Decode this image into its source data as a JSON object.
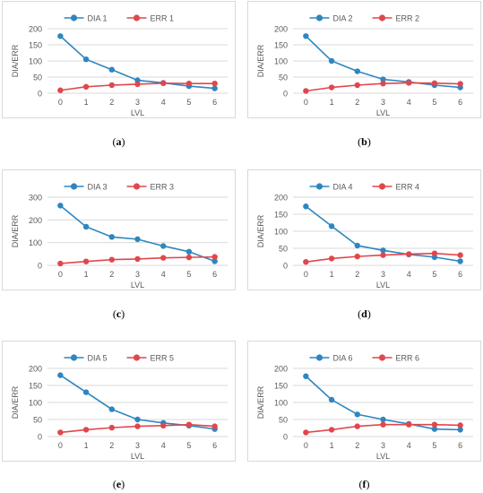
{
  "colors": {
    "dia": "#2E86C1",
    "err": "#E0474C",
    "grid": "#d9d9d9",
    "text": "#595959"
  },
  "chart_data": [
    {
      "type": "line",
      "panel": "(a)",
      "categories": [
        "0",
        "1",
        "2",
        "3",
        "4",
        "5",
        "6"
      ],
      "xlabel": "LVL",
      "ylabel": "DIA/ERR",
      "ylim": [
        0,
        200
      ],
      "yticks": [
        0,
        50,
        100,
        150,
        200
      ],
      "legend": "top-center",
      "grid": true,
      "series": [
        {
          "name": "DIA 1",
          "values": [
            177,
            105,
            73,
            40,
            32,
            22,
            15
          ]
        },
        {
          "name": "ERR 1",
          "values": [
            9,
            20,
            25,
            28,
            31,
            30,
            30
          ]
        }
      ]
    },
    {
      "type": "line",
      "panel": "(b)",
      "categories": [
        "0",
        "1",
        "2",
        "3",
        "4",
        "5",
        "6"
      ],
      "xlabel": "LVL",
      "ylabel": "DIA/ERR",
      "ylim": [
        0,
        200
      ],
      "yticks": [
        0,
        50,
        100,
        150,
        200
      ],
      "legend": "top-center",
      "grid": true,
      "series": [
        {
          "name": "DIA 2",
          "values": [
            177,
            100,
            68,
            43,
            35,
            25,
            18
          ]
        },
        {
          "name": "ERR 2",
          "values": [
            7,
            18,
            25,
            30,
            32,
            31,
            29
          ]
        }
      ]
    },
    {
      "type": "line",
      "panel": "(c)",
      "categories": [
        "0",
        "1",
        "2",
        "3",
        "4",
        "5",
        "6"
      ],
      "xlabel": "LVL",
      "ylabel": "DIA/ERR",
      "ylim": [
        0,
        300
      ],
      "yticks": [
        0,
        100,
        200,
        300
      ],
      "legend": "top-center",
      "grid": true,
      "series": [
        {
          "name": "DIA 3",
          "values": [
            263,
            170,
            125,
            115,
            85,
            60,
            18
          ]
        },
        {
          "name": "ERR 3",
          "values": [
            8,
            17,
            25,
            28,
            33,
            35,
            37
          ]
        }
      ]
    },
    {
      "type": "line",
      "panel": "(d)",
      "categories": [
        "0",
        "1",
        "2",
        "3",
        "4",
        "5",
        "6"
      ],
      "xlabel": "LVL",
      "ylabel": "DIA/ERR",
      "ylim": [
        0,
        200
      ],
      "yticks": [
        0,
        50,
        100,
        150,
        200
      ],
      "legend": "top-center",
      "grid": true,
      "series": [
        {
          "name": "DIA 4",
          "values": [
            173,
            115,
            58,
            44,
            32,
            24,
            12
          ]
        },
        {
          "name": "ERR 4",
          "values": [
            10,
            20,
            26,
            30,
            33,
            35,
            30
          ]
        }
      ]
    },
    {
      "type": "line",
      "panel": "(e)",
      "categories": [
        "0",
        "1",
        "2",
        "3",
        "4",
        "5",
        "6"
      ],
      "xlabel": "LVL",
      "ylabel": "DIA/ERR",
      "ylim": [
        0,
        200
      ],
      "yticks": [
        0,
        50,
        100,
        150,
        200
      ],
      "legend": "top-center",
      "grid": true,
      "series": [
        {
          "name": "DIA 5",
          "values": [
            180,
            130,
            80,
            50,
            40,
            32,
            22
          ]
        },
        {
          "name": "ERR 5",
          "values": [
            12,
            20,
            26,
            30,
            32,
            35,
            30
          ]
        }
      ]
    },
    {
      "type": "line",
      "panel": "(f)",
      "categories": [
        "0",
        "1",
        "2",
        "3",
        "4",
        "5",
        "6"
      ],
      "xlabel": "LVL",
      "ylabel": "DIA/ERR",
      "ylim": [
        0,
        200
      ],
      "yticks": [
        0,
        50,
        100,
        150,
        200
      ],
      "legend": "top-center",
      "grid": true,
      "series": [
        {
          "name": "DIA 6",
          "values": [
            177,
            108,
            65,
            50,
            37,
            22,
            20
          ]
        },
        {
          "name": "ERR 6",
          "values": [
            12,
            20,
            30,
            35,
            35,
            35,
            33
          ]
        }
      ]
    }
  ]
}
